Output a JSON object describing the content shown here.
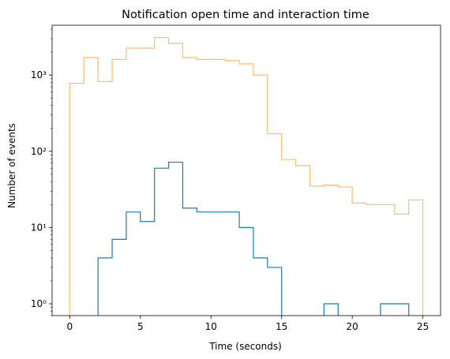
{
  "chart_data": {
    "type": "histogram-step",
    "title": "Notification open time and interaction time",
    "xlabel": "Time (seconds)",
    "ylabel": "Number of events",
    "xlim": [
      -1.25,
      26.25
    ],
    "ylim": [
      0.7,
      4500
    ],
    "yscale": "log",
    "grid": false,
    "x_ticks": [
      0,
      5,
      10,
      15,
      20,
      25
    ],
    "x_tick_labels": [
      "0",
      "5",
      "10",
      "15",
      "20",
      "25"
    ],
    "y_ticks": [
      1,
      10,
      100,
      1000
    ],
    "y_tick_labels": [
      "10⁰",
      "10¹",
      "10²",
      "10³"
    ],
    "bin_edges": [
      0,
      1,
      2,
      3,
      4,
      5,
      6,
      7,
      8,
      9,
      10,
      11,
      12,
      13,
      14,
      15,
      16,
      17,
      18,
      19,
      20,
      21,
      22,
      23,
      24,
      25
    ],
    "series": [
      {
        "color": "#ffbb78",
        "counts": [
          780,
          1700,
          820,
          1600,
          2250,
          2250,
          3100,
          2600,
          1700,
          1600,
          1600,
          1550,
          1400,
          1000,
          170,
          78,
          65,
          35,
          36,
          34,
          21,
          20,
          20,
          15,
          23
        ]
      },
      {
        "color": "#1f77b4",
        "counts": [
          0,
          0,
          4,
          7,
          16,
          12,
          60,
          72,
          18,
          16,
          16,
          16,
          10,
          4,
          3,
          0,
          0,
          0,
          1,
          0,
          0,
          0,
          1,
          1,
          0
        ]
      }
    ]
  }
}
